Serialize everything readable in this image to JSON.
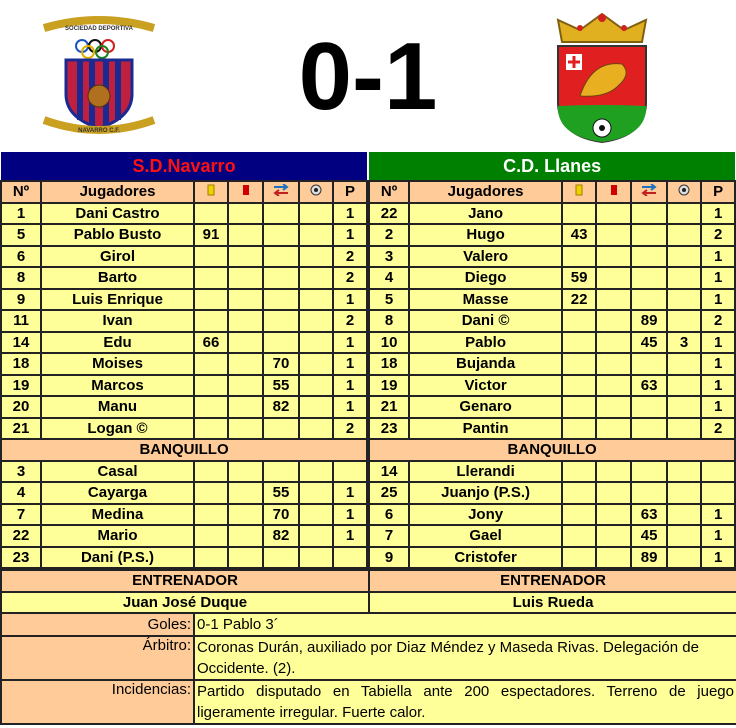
{
  "score": "0-1",
  "home": {
    "name": "S.D.Navarro",
    "bar_color": "#000080",
    "text_color": "#FF1010",
    "logo_text_top": "SOCIEDAD DEPORTIVA",
    "logo_text_bottom": "NAVARRO C.F.",
    "starters": [
      [
        "1",
        "Dani Castro",
        "",
        "",
        "",
        "",
        "1"
      ],
      [
        "5",
        "Pablo Busto",
        "91",
        "",
        "",
        "",
        "1"
      ],
      [
        "6",
        "Girol",
        "",
        "",
        "",
        "",
        "2"
      ],
      [
        "8",
        "Barto",
        "",
        "",
        "",
        "",
        "2"
      ],
      [
        "9",
        "Luis Enrique",
        "",
        "",
        "",
        "",
        "1"
      ],
      [
        "11",
        "Ivan",
        "",
        "",
        "",
        "",
        "2"
      ],
      [
        "14",
        "Edu",
        "66",
        "",
        "",
        "",
        "1"
      ],
      [
        "18",
        "Moises",
        "",
        "",
        "70",
        "",
        "1"
      ],
      [
        "19",
        "Marcos",
        "",
        "",
        "55",
        "",
        "1"
      ],
      [
        "20",
        "Manu",
        "",
        "",
        "82",
        "",
        "1"
      ],
      [
        "21",
        "Logan ©",
        "",
        "",
        "",
        "",
        "2"
      ]
    ],
    "bench": [
      [
        "3",
        "Casal",
        "",
        "",
        "",
        "",
        ""
      ],
      [
        "4",
        "Cayarga",
        "",
        "",
        "55",
        "",
        "1"
      ],
      [
        "7",
        "Medina",
        "",
        "",
        "70",
        "",
        "1"
      ],
      [
        "22",
        "Mario",
        "",
        "",
        "82",
        "",
        "1"
      ],
      [
        "23",
        "Dani (P.S.)",
        "",
        "",
        "",
        "",
        ""
      ]
    ],
    "coach": "Juan José Duque"
  },
  "away": {
    "name": "C.D. Llanes",
    "bar_color": "#008000",
    "text_color": "#FFFFFF",
    "starters": [
      [
        "22",
        "Jano",
        "",
        "",
        "",
        "",
        "1"
      ],
      [
        "2",
        "Hugo",
        "43",
        "",
        "",
        "",
        "2"
      ],
      [
        "3",
        "Valero",
        "",
        "",
        "",
        "",
        "1"
      ],
      [
        "4",
        "Diego",
        "59",
        "",
        "",
        "",
        "1"
      ],
      [
        "5",
        "Masse",
        "22",
        "",
        "",
        "",
        "1"
      ],
      [
        "8",
        "Dani ©",
        "",
        "",
        "89",
        "",
        "2"
      ],
      [
        "10",
        "Pablo",
        "",
        "",
        "45",
        "3",
        "1"
      ],
      [
        "18",
        "Bujanda",
        "",
        "",
        "",
        "",
        "1"
      ],
      [
        "19",
        "Victor",
        "",
        "",
        "63",
        "",
        "1"
      ],
      [
        "21",
        "Genaro",
        "",
        "",
        "",
        "",
        "1"
      ],
      [
        "23",
        "Pantin",
        "",
        "",
        "",
        "",
        "2"
      ]
    ],
    "bench": [
      [
        "14",
        "Llerandi",
        "",
        "",
        "",
        "",
        ""
      ],
      [
        "25",
        "Juanjo (P.S.)",
        "",
        "",
        "",
        "",
        ""
      ],
      [
        "6",
        "Jony",
        "",
        "",
        "63",
        "",
        "1"
      ],
      [
        "7",
        "Gael",
        "",
        "",
        "45",
        "",
        "1"
      ],
      [
        "9",
        "Cristofer",
        "",
        "",
        "89",
        "",
        "1"
      ]
    ],
    "coach": "Luis Rueda"
  },
  "columns": {
    "num": "Nº",
    "players": "Jugadores",
    "yellow_icon": "yellow-card-icon",
    "red_icon": "red-card-icon",
    "sub_icon": "substitution-icon",
    "goal_icon": "ball-icon",
    "p": "P"
  },
  "labels": {
    "bench": "BANQUILLO",
    "coach": "ENTRENADOR"
  },
  "details": [
    {
      "label": "Goles:",
      "value": "0-1 Pablo 3´"
    },
    {
      "label": "Árbitro:",
      "value": "Coronas Durán, auxiliado por Diaz Méndez y Maseda Rivas. Delegación de Occidente. (2)."
    },
    {
      "label": "Incidencias:",
      "value": "Partido disputado en Tabiella ante 200 espectadores. Terreno de juego ligeramente irregular. Fuerte calor."
    }
  ],
  "colors": {
    "cell": "#FFFF99",
    "header": "#FFCC99"
  }
}
